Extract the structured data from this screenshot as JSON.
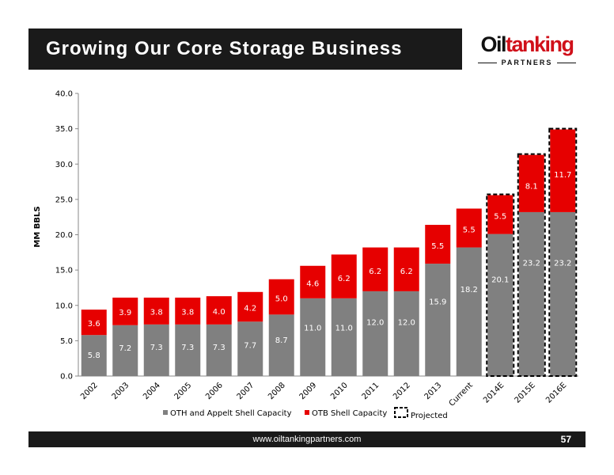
{
  "header": {
    "title": "Growing Our Core Storage Business"
  },
  "logo": {
    "word_part1": "Oil",
    "word_part2": "tanking",
    "sub": "PARTNERS",
    "colors": {
      "dark": "#111111",
      "red": "#d0101a"
    }
  },
  "footer": {
    "url": "www.oiltankingpartners.com",
    "page": "57"
  },
  "chart_data": {
    "type": "bar",
    "stacked": true,
    "categories": [
      "2002",
      "2003",
      "2004",
      "2005",
      "2006",
      "2007",
      "2008",
      "2009",
      "2010",
      "2011",
      "2012",
      "2013",
      "Current",
      "2014E",
      "2015E",
      "2016E"
    ],
    "series": [
      {
        "name": "OTH and Appelt Shell Capacity",
        "color": "#808080",
        "values": [
          5.8,
          7.2,
          7.3,
          7.3,
          7.3,
          7.7,
          8.7,
          11.0,
          11.0,
          12.0,
          12.0,
          15.9,
          18.2,
          20.1,
          23.2,
          23.2
        ],
        "labels": [
          "5.8",
          "7.2",
          "7.3",
          "7.3",
          "7.3",
          "7.7",
          "8.7",
          "11.0",
          "11.0",
          "12.0",
          "12.0",
          "15.9",
          "18.2",
          "20.1",
          "23.2",
          "23.2"
        ]
      },
      {
        "name": "OTB Shell Capacity",
        "color": "#e60000",
        "values": [
          3.6,
          3.9,
          3.8,
          3.8,
          4.0,
          4.2,
          5.0,
          4.6,
          6.2,
          6.2,
          6.2,
          5.5,
          5.5,
          5.5,
          8.1,
          11.7
        ],
        "labels": [
          "3.6",
          "3.9",
          "3.8",
          "3.8",
          "4.0",
          "4.2",
          "5.0",
          "4.6",
          "6.2",
          "6.2",
          "6.2",
          "5.5",
          "5.5",
          "5.5",
          "8.1",
          "11.7"
        ]
      }
    ],
    "projected": [
      false,
      false,
      false,
      false,
      false,
      false,
      false,
      false,
      false,
      false,
      false,
      false,
      false,
      true,
      true,
      true
    ],
    "projected_label": "Projected",
    "ylabel": "MM BBLS",
    "ylim": [
      0,
      40
    ],
    "yticks": [
      "0.0",
      "5.0",
      "10.0",
      "15.0",
      "20.0",
      "25.0",
      "30.0",
      "35.0",
      "40.0"
    ],
    "legend_position": "bottom",
    "grid": false
  }
}
